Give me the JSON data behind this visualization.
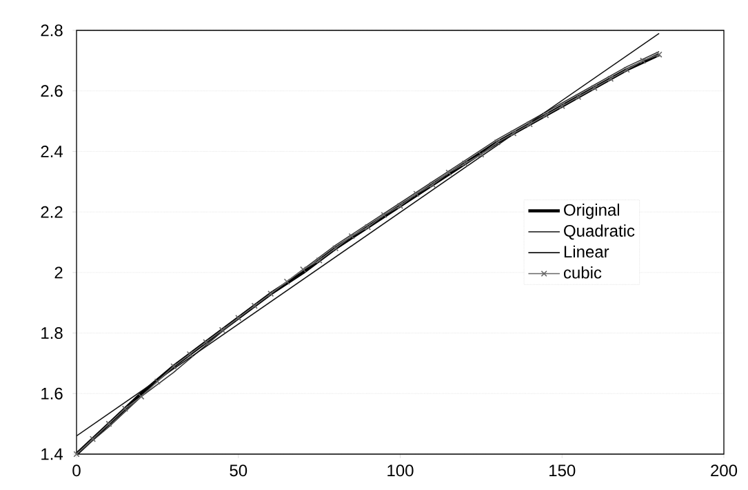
{
  "chart_data": {
    "type": "line",
    "xlim": [
      0,
      200
    ],
    "xticks": [
      0,
      50,
      100,
      150,
      200
    ],
    "ylim": [
      1.4,
      2.8
    ],
    "yticks": [
      1.4,
      1.6,
      1.8,
      2,
      2.2,
      2.4,
      2.6,
      2.8
    ],
    "grid": "y",
    "legend": "right",
    "series": [
      {
        "name": "Original",
        "color": "#000000",
        "marker": "none",
        "x": [
          0,
          10,
          20,
          30,
          40,
          50,
          60,
          70,
          80,
          90,
          100,
          110,
          120,
          130,
          140,
          150,
          160,
          170,
          180
        ],
        "values": [
          1.4,
          1.5,
          1.6,
          1.69,
          1.77,
          1.85,
          1.93,
          2.0,
          2.08,
          2.15,
          2.22,
          2.29,
          2.36,
          2.43,
          2.49,
          2.55,
          2.61,
          2.67,
          2.72
        ]
      },
      {
        "name": "Quadratic",
        "color": "#333333",
        "marker": "none",
        "x": [
          0,
          10,
          20,
          30,
          40,
          50,
          60,
          70,
          80,
          90,
          100,
          110,
          120,
          130,
          140,
          150,
          160,
          170,
          180
        ],
        "values": [
          1.4,
          1.49,
          1.59,
          1.67,
          1.76,
          1.85,
          1.93,
          2.01,
          2.09,
          2.16,
          2.23,
          2.3,
          2.37,
          2.44,
          2.5,
          2.56,
          2.62,
          2.68,
          2.73
        ]
      },
      {
        "name": "Linear",
        "color": "#111111",
        "marker": "none",
        "x": [
          0,
          180
        ],
        "values": [
          1.46,
          2.79
        ]
      },
      {
        "name": "cubic",
        "color": "#666666",
        "marker": "cross",
        "x": [
          0,
          5,
          10,
          15,
          20,
          25,
          30,
          35,
          40,
          45,
          50,
          55,
          60,
          65,
          70,
          75,
          80,
          85,
          90,
          95,
          100,
          105,
          110,
          115,
          120,
          125,
          130,
          135,
          140,
          145,
          150,
          155,
          160,
          165,
          170,
          175,
          180
        ],
        "values": [
          1.4,
          1.45,
          1.5,
          1.55,
          1.59,
          1.64,
          1.69,
          1.73,
          1.77,
          1.81,
          1.85,
          1.89,
          1.93,
          1.97,
          2.01,
          2.04,
          2.08,
          2.12,
          2.15,
          2.19,
          2.22,
          2.26,
          2.29,
          2.33,
          2.36,
          2.39,
          2.43,
          2.46,
          2.49,
          2.52,
          2.55,
          2.58,
          2.61,
          2.64,
          2.67,
          2.7,
          2.72
        ]
      }
    ]
  }
}
